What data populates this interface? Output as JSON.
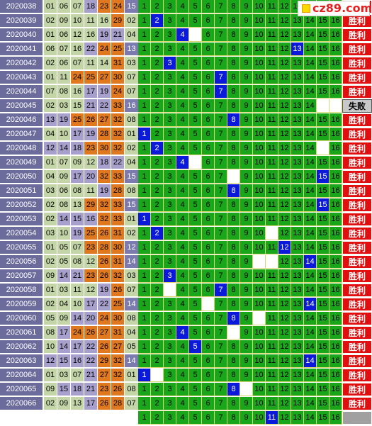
{
  "colors": {
    "period_bg": "#6b6b9c",
    "cat_a": "#c4d6a8",
    "cat_b": "#a8a0cc",
    "cat_c": "#e07820",
    "cat_d": "#7b7bb0",
    "grid_green": "#1aa61a",
    "hit_blue": "#0a1ad8",
    "win_red": "#e01010"
  },
  "logo": {
    "text": "cz89.com"
  },
  "win_label": "胜利",
  "lose_label": "失败",
  "grid_numbers": [
    "1",
    "2",
    "3",
    "4",
    "5",
    "6",
    "7",
    "8",
    "9",
    "10",
    "11",
    "12",
    "13",
    "14",
    "15",
    "16"
  ],
  "rows": [
    {
      "period": "2020038",
      "nums": [
        "01",
        "06",
        "07",
        "18",
        "23",
        "24",
        "15"
      ],
      "cats": [
        "a",
        "a",
        "a",
        "b",
        "c",
        "c",
        "d"
      ],
      "hit": null,
      "miss": [],
      "result": "win"
    },
    {
      "period": "2020039",
      "nums": [
        "02",
        "09",
        "10",
        "11",
        "16",
        "29",
        "02"
      ],
      "cats": [
        "a",
        "a",
        "a",
        "a",
        "a",
        "c",
        "a"
      ],
      "hit": 2,
      "miss": [],
      "result": "win"
    },
    {
      "period": "2020040",
      "nums": [
        "01",
        "06",
        "12",
        "16",
        "19",
        "21",
        "04"
      ],
      "cats": [
        "a",
        "a",
        "a",
        "a",
        "b",
        "b",
        "a"
      ],
      "hit": 4,
      "miss": [
        5
      ],
      "result": "win"
    },
    {
      "period": "2020041",
      "nums": [
        "06",
        "07",
        "16",
        "22",
        "24",
        "25",
        "13"
      ],
      "cats": [
        "a",
        "a",
        "a",
        "b",
        "c",
        "c",
        "d"
      ],
      "hit": 13,
      "miss": [],
      "result": "win"
    },
    {
      "period": "2020042",
      "nums": [
        "02",
        "06",
        "07",
        "11",
        "14",
        "31",
        "03"
      ],
      "cats": [
        "a",
        "a",
        "a",
        "a",
        "a",
        "c",
        "a"
      ],
      "hit": 3,
      "miss": [],
      "result": "win"
    },
    {
      "period": "2020043",
      "nums": [
        "01",
        "11",
        "24",
        "25",
        "27",
        "30",
        "07"
      ],
      "cats": [
        "a",
        "a",
        "c",
        "c",
        "c",
        "c",
        "a"
      ],
      "hit": 7,
      "miss": [],
      "result": "win"
    },
    {
      "period": "2020044",
      "nums": [
        "07",
        "08",
        "16",
        "17",
        "19",
        "24",
        "07"
      ],
      "cats": [
        "a",
        "a",
        "a",
        "b",
        "b",
        "c",
        "a"
      ],
      "hit": 7,
      "miss": [],
      "result": "win"
    },
    {
      "period": "2020045",
      "nums": [
        "02",
        "03",
        "15",
        "21",
        "22",
        "33",
        "16"
      ],
      "cats": [
        "a",
        "a",
        "a",
        "b",
        "b",
        "c",
        "d"
      ],
      "hit": null,
      "miss": [
        15,
        16
      ],
      "result": "lose"
    },
    {
      "period": "2020046",
      "nums": [
        "13",
        "19",
        "25",
        "26",
        "27",
        "32",
        "08"
      ],
      "cats": [
        "b",
        "b",
        "c",
        "c",
        "c",
        "c",
        "a"
      ],
      "hit": 8,
      "miss": [],
      "result": "win"
    },
    {
      "period": "2020047",
      "nums": [
        "04",
        "10",
        "17",
        "19",
        "28",
        "32",
        "01"
      ],
      "cats": [
        "a",
        "a",
        "b",
        "b",
        "c",
        "c",
        "a"
      ],
      "hit": 1,
      "miss": [],
      "result": "win"
    },
    {
      "period": "2020048",
      "nums": [
        "12",
        "14",
        "18",
        "23",
        "30",
        "32",
        "02"
      ],
      "cats": [
        "b",
        "b",
        "b",
        "c",
        "c",
        "c",
        "a"
      ],
      "hit": 2,
      "miss": [
        15
      ],
      "result": "win"
    },
    {
      "period": "2020049",
      "nums": [
        "01",
        "07",
        "09",
        "12",
        "18",
        "22",
        "04"
      ],
      "cats": [
        "a",
        "a",
        "a",
        "a",
        "b",
        "b",
        "a"
      ],
      "hit": 4,
      "miss": [
        5
      ],
      "result": "win"
    },
    {
      "period": "2020050",
      "nums": [
        "04",
        "09",
        "17",
        "20",
        "32",
        "33",
        "15"
      ],
      "cats": [
        "a",
        "a",
        "b",
        "b",
        "c",
        "c",
        "d"
      ],
      "hit": 15,
      "miss": [
        8
      ],
      "result": "win"
    },
    {
      "period": "2020051",
      "nums": [
        "03",
        "06",
        "08",
        "11",
        "19",
        "28",
        "08"
      ],
      "cats": [
        "a",
        "a",
        "a",
        "a",
        "b",
        "c",
        "a"
      ],
      "hit": 8,
      "miss": [],
      "result": "win"
    },
    {
      "period": "2020052",
      "nums": [
        "02",
        "08",
        "13",
        "29",
        "32",
        "33",
        "15"
      ],
      "cats": [
        "a",
        "a",
        "a",
        "c",
        "c",
        "c",
        "d"
      ],
      "hit": 15,
      "miss": [],
      "result": "win"
    },
    {
      "period": "2020053",
      "nums": [
        "02",
        "14",
        "15",
        "16",
        "32",
        "33",
        "01"
      ],
      "cats": [
        "a",
        "b",
        "b",
        "b",
        "c",
        "c",
        "a"
      ],
      "hit": 1,
      "miss": [],
      "result": "win"
    },
    {
      "period": "2020054",
      "nums": [
        "03",
        "10",
        "19",
        "25",
        "26",
        "31",
        "02"
      ],
      "cats": [
        "a",
        "a",
        "b",
        "c",
        "c",
        "c",
        "a"
      ],
      "hit": 2,
      "miss": [
        11
      ],
      "result": "win"
    },
    {
      "period": "2020055",
      "nums": [
        "01",
        "05",
        "07",
        "23",
        "28",
        "30",
        "12"
      ],
      "cats": [
        "a",
        "a",
        "a",
        "c",
        "c",
        "c",
        "d"
      ],
      "hit": 12,
      "miss": [],
      "result": "win"
    },
    {
      "period": "2020056",
      "nums": [
        "02",
        "05",
        "08",
        "12",
        "26",
        "31",
        "14"
      ],
      "cats": [
        "a",
        "a",
        "a",
        "a",
        "c",
        "c",
        "d"
      ],
      "hit": 14,
      "miss": [
        10,
        11
      ],
      "result": "win"
    },
    {
      "period": "2020057",
      "nums": [
        "09",
        "14",
        "21",
        "23",
        "26",
        "32",
        "03"
      ],
      "cats": [
        "a",
        "b",
        "b",
        "c",
        "c",
        "c",
        "a"
      ],
      "hit": 3,
      "miss": [],
      "result": "win"
    },
    {
      "period": "2020058",
      "nums": [
        "01",
        "03",
        "11",
        "12",
        "19",
        "26",
        "07"
      ],
      "cats": [
        "a",
        "a",
        "a",
        "a",
        "b",
        "c",
        "a"
      ],
      "hit": 7,
      "miss": [
        3
      ],
      "result": "win"
    },
    {
      "period": "2020059",
      "nums": [
        "02",
        "04",
        "10",
        "17",
        "22",
        "25",
        "14"
      ],
      "cats": [
        "a",
        "a",
        "a",
        "b",
        "b",
        "c",
        "d"
      ],
      "hit": 14,
      "miss": [
        6
      ],
      "result": "win"
    },
    {
      "period": "2020060",
      "nums": [
        "05",
        "09",
        "14",
        "20",
        "24",
        "30",
        "08"
      ],
      "cats": [
        "a",
        "a",
        "b",
        "b",
        "c",
        "c",
        "a"
      ],
      "hit": 8,
      "miss": [
        10
      ],
      "result": "win"
    },
    {
      "period": "2020061",
      "nums": [
        "08",
        "17",
        "24",
        "26",
        "27",
        "31",
        "04"
      ],
      "cats": [
        "a",
        "b",
        "c",
        "c",
        "c",
        "c",
        "a"
      ],
      "hit": 4,
      "miss": [
        8
      ],
      "result": "win"
    },
    {
      "period": "2020062",
      "nums": [
        "10",
        "14",
        "17",
        "22",
        "26",
        "27",
        "05"
      ],
      "cats": [
        "a",
        "b",
        "b",
        "b",
        "c",
        "c",
        "a"
      ],
      "hit": 5,
      "miss": [],
      "result": "win"
    },
    {
      "period": "2020063",
      "nums": [
        "12",
        "15",
        "16",
        "22",
        "29",
        "32",
        "14"
      ],
      "cats": [
        "b",
        "b",
        "b",
        "b",
        "c",
        "c",
        "d"
      ],
      "hit": 14,
      "miss": [],
      "result": "win"
    },
    {
      "period": "2020064",
      "nums": [
        "01",
        "03",
        "07",
        "21",
        "27",
        "32",
        "01"
      ],
      "cats": [
        "a",
        "a",
        "a",
        "b",
        "c",
        "c",
        "a"
      ],
      "hit": 1,
      "miss": [
        2
      ],
      "result": "win"
    },
    {
      "period": "2020065",
      "nums": [
        "09",
        "15",
        "18",
        "21",
        "23",
        "26",
        "08"
      ],
      "cats": [
        "a",
        "b",
        "b",
        "b",
        "c",
        "c",
        "a"
      ],
      "hit": 8,
      "miss": [
        9
      ],
      "result": "win"
    },
    {
      "period": "2020066",
      "nums": [
        "02",
        "09",
        "13",
        "17",
        "26",
        "28",
        "07"
      ],
      "cats": [
        "a",
        "a",
        "a",
        "b",
        "c",
        "c",
        "a"
      ],
      "hit": null,
      "miss": [],
      "result": "win"
    },
    {
      "period": "",
      "nums": [
        "",
        "",
        "",
        "",
        "",
        "",
        ""
      ],
      "cats": [
        "w",
        "w",
        "w",
        "w",
        "w",
        "w",
        "w"
      ],
      "hit": 11,
      "miss": [],
      "result": "blank"
    }
  ]
}
